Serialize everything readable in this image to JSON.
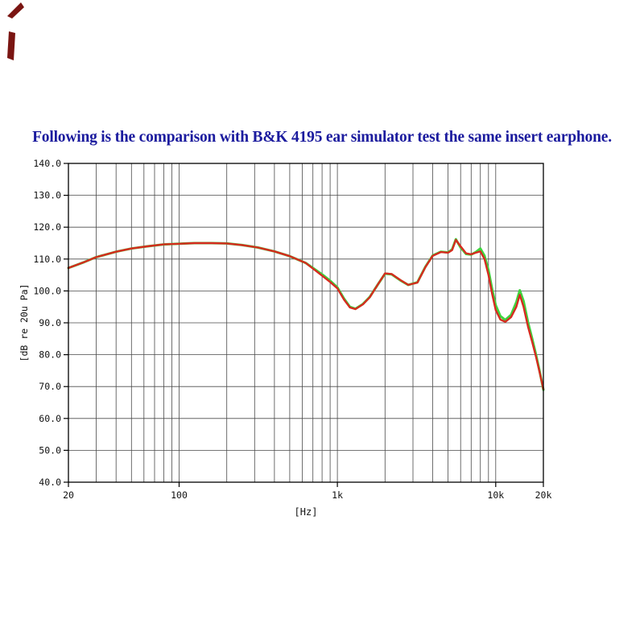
{
  "page": {
    "title": "Following is the comparison with B&K 4195 ear simulator test the same insert earphone."
  },
  "colors": {
    "title": "#1b1b9e",
    "grid": "#4a4a4a",
    "frame": "#000000",
    "artifact": "#7a1512",
    "series_green": "#3fd43f",
    "series_red": "#d62b1f"
  },
  "chart_data": {
    "type": "line",
    "title": "",
    "xlabel": "[Hz]",
    "ylabel": "[dB re 20u Pa]",
    "x_scale": "log",
    "xlim": [
      20,
      20000
    ],
    "ylim": [
      40,
      140
    ],
    "grid": true,
    "legend": "none",
    "x_ticks": [
      {
        "v": 20,
        "label": "20"
      },
      {
        "v": 100,
        "label": "100"
      },
      {
        "v": 1000,
        "label": "1k"
      },
      {
        "v": 10000,
        "label": "10k"
      },
      {
        "v": 20000,
        "label": "20k"
      }
    ],
    "y_ticks": [
      140,
      130,
      120,
      110,
      100,
      90,
      80,
      70,
      60,
      50,
      40
    ],
    "y_tick_labels": [
      "140.0",
      "130.0",
      "120.0",
      "110.0",
      "100.0",
      "90.0",
      "80.0",
      "70.0",
      "60.0",
      "50.0",
      "40.0"
    ],
    "x_grid": [
      20,
      30,
      40,
      50,
      60,
      70,
      80,
      90,
      100,
      200,
      300,
      400,
      500,
      600,
      700,
      800,
      900,
      1000,
      2000,
      3000,
      4000,
      5000,
      6000,
      7000,
      8000,
      9000,
      10000,
      20000
    ],
    "y_grid": [
      50,
      60,
      70,
      80,
      90,
      100,
      110,
      120,
      130
    ],
    "x": [
      20,
      25,
      30,
      40,
      50,
      63,
      80,
      100,
      125,
      160,
      200,
      250,
      315,
      400,
      500,
      630,
      800,
      900,
      1000,
      1100,
      1200,
      1300,
      1450,
      1600,
      1800,
      2000,
      2200,
      2500,
      2800,
      3200,
      3600,
      4000,
      4500,
      5000,
      5300,
      5600,
      6000,
      6500,
      7000,
      7500,
      8000,
      8500,
      9000,
      9500,
      10000,
      10700,
      11500,
      12500,
      13500,
      14200,
      15000,
      16000,
      17000,
      18000,
      19000,
      20000
    ],
    "series": [
      {
        "name": "green",
        "color": "#3fd43f",
        "y": [
          107.2,
          109.0,
          110.6,
          112.3,
          113.3,
          114.0,
          114.6,
          114.8,
          115.0,
          115.0,
          114.9,
          114.4,
          113.6,
          112.4,
          110.9,
          108.8,
          105.2,
          103.2,
          101.1,
          97.6,
          95.0,
          94.4,
          95.9,
          98.1,
          102.0,
          105.4,
          105.2,
          103.3,
          101.9,
          102.7,
          107.6,
          111.1,
          112.3,
          112.1,
          113.0,
          116.2,
          113.6,
          111.6,
          111.4,
          112.2,
          113.3,
          111.0,
          106.5,
          100.5,
          95.5,
          92.1,
          90.9,
          92.5,
          96.5,
          100.2,
          96.8,
          90.2,
          85.0,
          79.8,
          74.5,
          69.0
        ]
      },
      {
        "name": "red",
        "color": "#d62b1f",
        "y": [
          107.2,
          109.0,
          110.6,
          112.3,
          113.3,
          114.0,
          114.6,
          114.8,
          115.0,
          115.0,
          114.9,
          114.4,
          113.6,
          112.4,
          110.9,
          108.8,
          104.8,
          102.8,
          100.8,
          97.3,
          94.8,
          94.3,
          95.8,
          98.0,
          102.0,
          105.5,
          105.3,
          103.4,
          101.9,
          102.6,
          107.5,
          111.0,
          112.2,
          112.0,
          112.8,
          116.0,
          114.0,
          111.8,
          111.5,
          112.0,
          112.4,
          110.0,
          105.0,
          99.0,
          94.0,
          91.0,
          90.3,
          91.8,
          95.0,
          98.8,
          95.0,
          88.8,
          84.0,
          79.2,
          74.2,
          69.2
        ]
      }
    ]
  }
}
